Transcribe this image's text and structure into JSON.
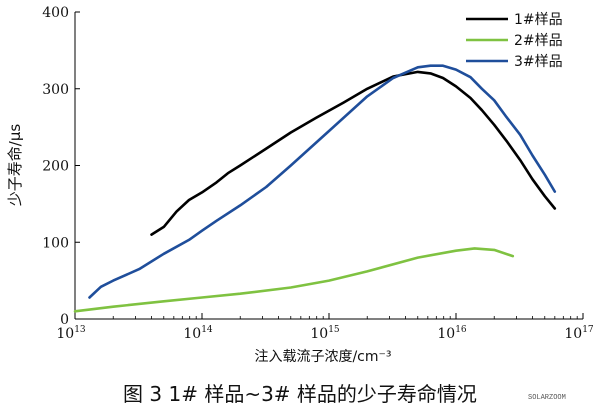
{
  "chart_data": {
    "type": "line",
    "xscale": "log",
    "xlim": [
      10000000000000.0,
      1e+17
    ],
    "ylim": [
      0,
      400
    ],
    "ylabel": "少子寿命/μs",
    "xlabel": "注入载流子浓度/cm⁻³",
    "y_ticks": [
      "0",
      "100",
      "200",
      "300",
      "400"
    ],
    "x_ticks": [
      {
        "base": "10",
        "exp": "13"
      },
      {
        "base": "10",
        "exp": "14"
      },
      {
        "base": "10",
        "exp": "15"
      },
      {
        "base": "10",
        "exp": "16"
      },
      {
        "base": "10",
        "exp": "17"
      }
    ],
    "legend_position": "top-right",
    "series": [
      {
        "name": "1#样品",
        "color": "#000000",
        "points": [
          [
            40000000000000.0,
            110
          ],
          [
            50000000000000.0,
            120
          ],
          [
            63000000000000.0,
            140
          ],
          [
            79000000000000.0,
            155
          ],
          [
            100000000000000.0,
            165
          ],
          [
            130000000000000.0,
            178
          ],
          [
            160000000000000.0,
            190
          ],
          [
            200000000000000.0,
            200
          ],
          [
            320000000000000.0,
            222
          ],
          [
            500000000000000.0,
            243
          ],
          [
            790000000000000.0,
            262
          ],
          [
            1300000000000000.0,
            282
          ],
          [
            2000000000000000.0,
            300
          ],
          [
            3200000000000000.0,
            316
          ],
          [
            5000000000000000.0,
            322
          ],
          [
            6300000000000000.0,
            320
          ],
          [
            7900000000000000.0,
            314
          ],
          [
            1e+16,
            303
          ],
          [
            1.3e+16,
            288
          ],
          [
            1.6e+16,
            272
          ],
          [
            2e+16,
            253
          ],
          [
            2.5e+16,
            232
          ],
          [
            3.2e+16,
            207
          ],
          [
            4e+16,
            182
          ],
          [
            5e+16,
            160
          ],
          [
            6e+16,
            144
          ]
        ]
      },
      {
        "name": "2#样品",
        "color": "#7fc241",
        "points": [
          [
            10000000000000.0,
            10
          ],
          [
            20000000000000.0,
            16
          ],
          [
            50000000000000.0,
            23
          ],
          [
            100000000000000.0,
            28
          ],
          [
            200000000000000.0,
            33
          ],
          [
            500000000000000.0,
            41
          ],
          [
            1000000000000000.0,
            50
          ],
          [
            2000000000000000.0,
            62
          ],
          [
            5000000000000000.0,
            80
          ],
          [
            1e+16,
            89
          ],
          [
            1.4e+16,
            92
          ],
          [
            2e+16,
            90
          ],
          [
            2.8e+16,
            82
          ]
        ]
      },
      {
        "name": "3#样品",
        "color": "#1f4e9b",
        "points": [
          [
            13000000000000.0,
            28
          ],
          [
            16000000000000.0,
            42
          ],
          [
            20000000000000.0,
            50
          ],
          [
            32000000000000.0,
            65
          ],
          [
            50000000000000.0,
            85
          ],
          [
            79000000000000.0,
            103
          ],
          [
            100000000000000.0,
            115
          ],
          [
            130000000000000.0,
            128
          ],
          [
            200000000000000.0,
            148
          ],
          [
            320000000000000.0,
            172
          ],
          [
            500000000000000.0,
            200
          ],
          [
            1000000000000000.0,
            245
          ],
          [
            2000000000000000.0,
            290
          ],
          [
            3200000000000000.0,
            314
          ],
          [
            5000000000000000.0,
            328
          ],
          [
            6300000000000000.0,
            330
          ],
          [
            7900000000000000.0,
            330
          ],
          [
            1e+16,
            325
          ],
          [
            1.3e+16,
            315
          ],
          [
            1.6e+16,
            300
          ],
          [
            2e+16,
            285
          ],
          [
            2.5e+16,
            263
          ],
          [
            3.2e+16,
            240
          ],
          [
            4e+16,
            213
          ],
          [
            5e+16,
            188
          ],
          [
            6e+16,
            166
          ]
        ]
      }
    ]
  },
  "caption": "图 3  1# 样品~3# 样品的少子寿命情况",
  "watermark": "SOLARZOOM"
}
